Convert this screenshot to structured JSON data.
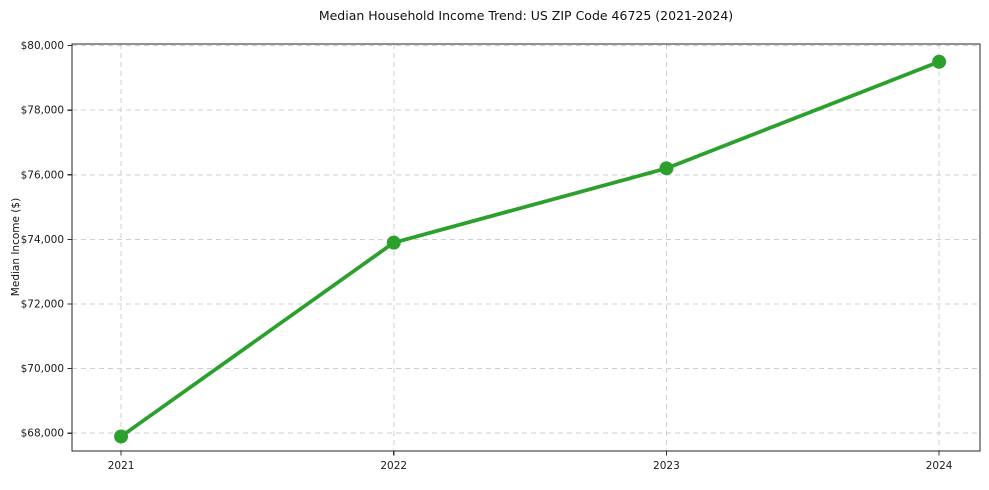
{
  "chart_data": {
    "type": "line",
    "title": "Median Household Income Trend: US ZIP Code 46725 (2021-2024)",
    "xlabel": "",
    "ylabel": "Median Income ($)",
    "x": [
      2021,
      2022,
      2023,
      2024
    ],
    "values": [
      67900,
      73900,
      76200,
      79500
    ],
    "xticks": {
      "values": [
        2021,
        2022,
        2023,
        2024
      ],
      "labels": [
        "2021",
        "2022",
        "2023",
        "2024"
      ]
    },
    "yticks": {
      "values": [
        68000,
        70000,
        72000,
        74000,
        76000,
        78000,
        80000
      ],
      "labels": [
        "$68,000",
        "$70,000",
        "$72,000",
        "$74,000",
        "$76,000",
        "$78,000",
        "$80,000"
      ]
    },
    "xlim": [
      2020.82,
      2024.15
    ],
    "ylim": [
      67450,
      80050
    ],
    "grid": {
      "visible": true,
      "style": "dashed",
      "axes": "both"
    },
    "legend": {
      "visible": false
    },
    "colors": {
      "line": "#2ca02c",
      "marker": "#2ca02c",
      "grid": "#cfcfcf",
      "axis": "#262626",
      "tick": "#333333",
      "text": "#1a1a1a",
      "background": "#ffffff"
    }
  }
}
